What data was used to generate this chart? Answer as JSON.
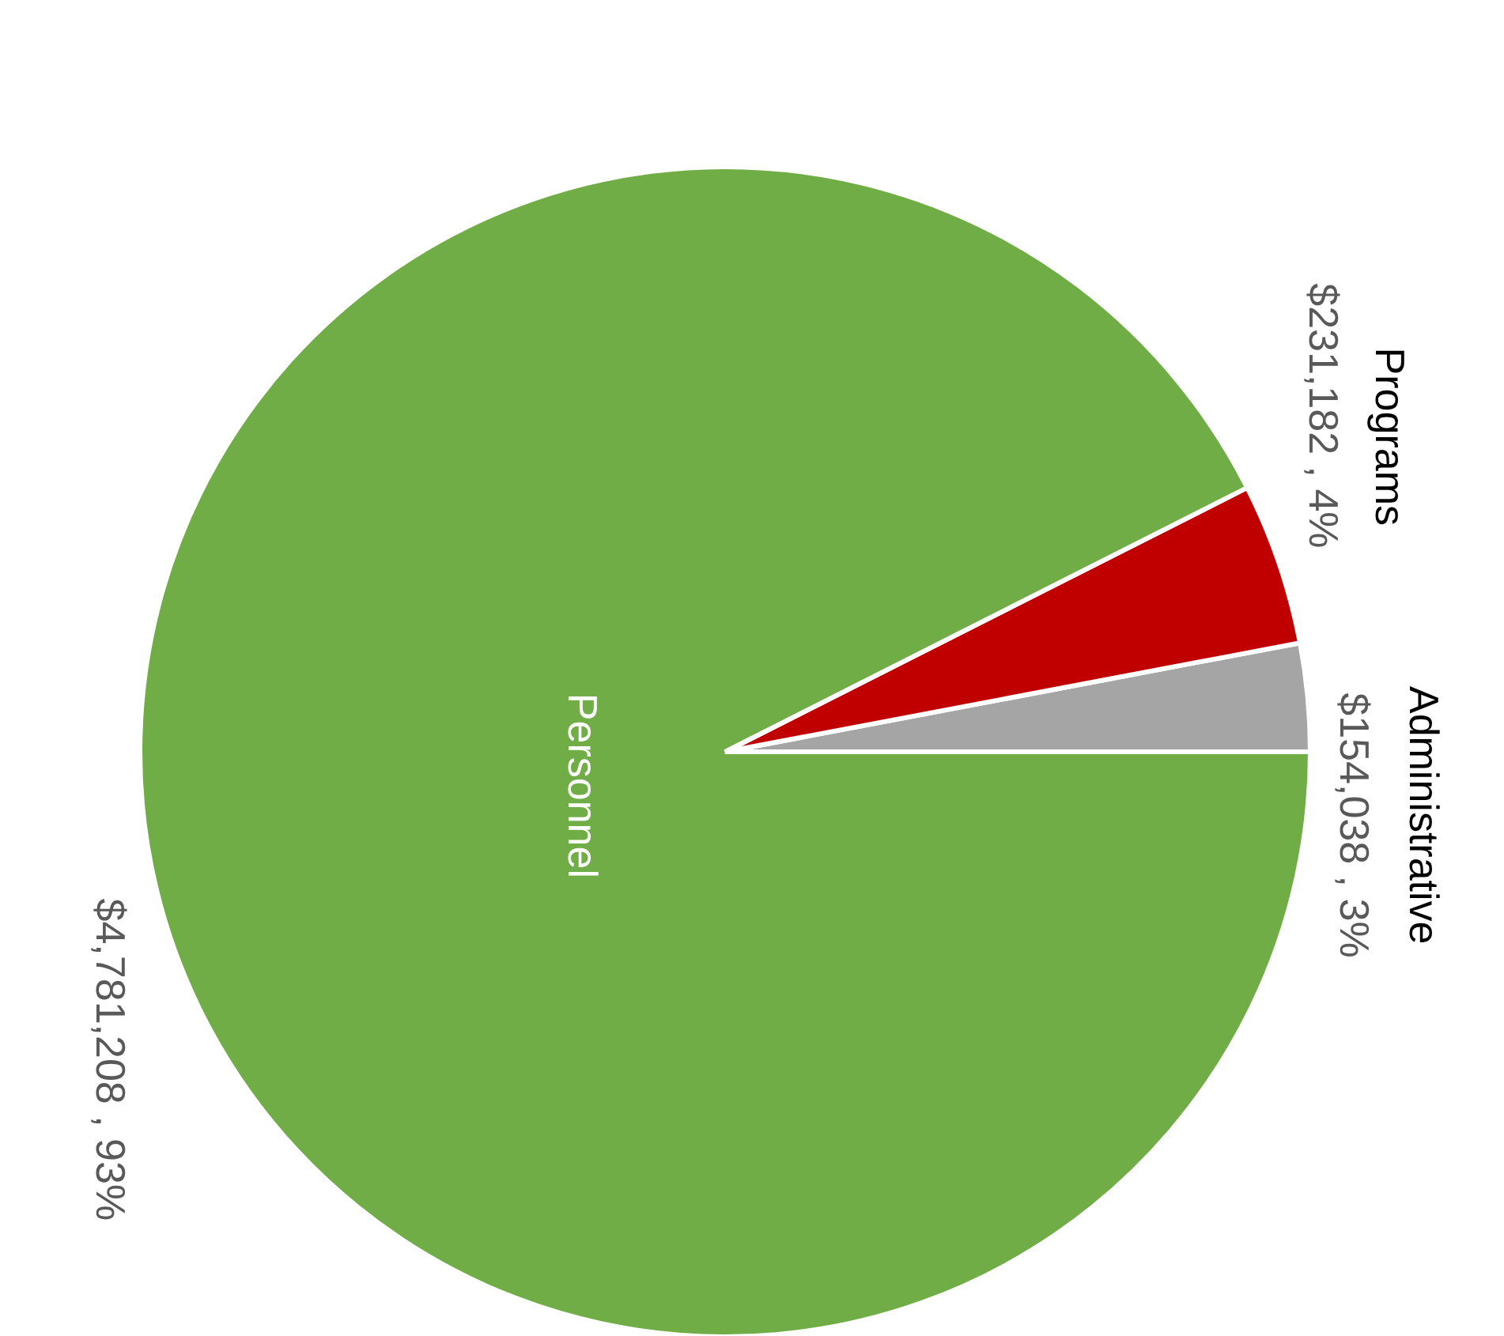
{
  "chart_data": {
    "type": "pie",
    "categories": [
      "Administrative",
      "Programs",
      "Personnel"
    ],
    "values": [
      154038,
      231182,
      4781208
    ],
    "colors": [
      "#a5a5a5",
      "#c00000",
      "#70ad47"
    ],
    "value_labels": [
      "$154,038 , 3%",
      "$231,182 , 4%",
      "$4,781,208 , 93%"
    ]
  }
}
